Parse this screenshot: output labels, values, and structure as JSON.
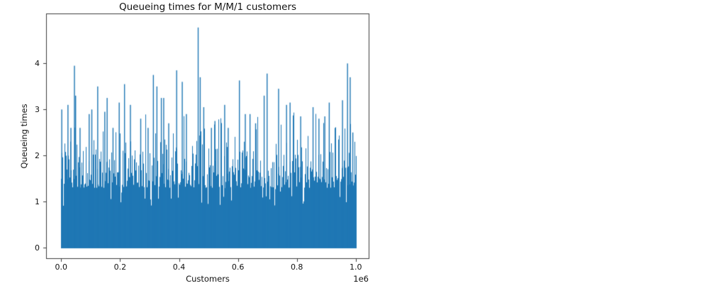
{
  "chart_data": {
    "type": "line",
    "title": "Queueing times for M/M/1 customers",
    "xlabel": "Customers",
    "ylabel": "Queueing times",
    "x_offset_text": "1e6",
    "series_color": "#1f77b4",
    "axes_color": "#3c3c3c",
    "text_color": "#111111",
    "background_color": "#ffffff",
    "legend": "none",
    "grid": false,
    "x_range": [
      0,
      1000000
    ],
    "xlim": [
      -50000,
      1050000
    ],
    "ylim": [
      -0.24,
      5.08
    ],
    "max_value": 4.78,
    "xtick_values": [
      0,
      200000,
      400000,
      600000,
      800000,
      1000000
    ],
    "xtick_labels": [
      "0.0",
      "0.2",
      "0.4",
      "0.6",
      "0.8",
      "1.0"
    ],
    "ytick_values": [
      0,
      1,
      2,
      3,
      4
    ],
    "ytick_labels": [
      "0",
      "1",
      "2",
      "3",
      "4"
    ],
    "description": "Approximately one million simulated M/M/1 queueing times plotted as a dense line; renders as a solid band from 0 with a ragged top around 1.3-2.4 plus sparse taller spikes.",
    "dense_band": {
      "bottom": 0,
      "top_typical_range": [
        1.3,
        2.35
      ],
      "texture_probability": 0.3,
      "texture_boost": 0.35,
      "tall_probability": 0.05,
      "occasional_top_range": [
        2.2,
        2.95
      ],
      "dip_probability": 0.06,
      "dip_top_range": [
        0.9,
        1.45
      ]
    },
    "peaks": [
      {
        "x": 2000,
        "y": 3.0
      },
      {
        "x": 23000,
        "y": 3.1
      },
      {
        "x": 33000,
        "y": 2.6
      },
      {
        "x": 45000,
        "y": 3.95
      },
      {
        "x": 49000,
        "y": 3.3
      },
      {
        "x": 64000,
        "y": 2.6
      },
      {
        "x": 95000,
        "y": 2.9
      },
      {
        "x": 104000,
        "y": 3.0
      },
      {
        "x": 124000,
        "y": 3.5
      },
      {
        "x": 148000,
        "y": 2.95
      },
      {
        "x": 156000,
        "y": 3.25
      },
      {
        "x": 176000,
        "y": 2.6
      },
      {
        "x": 197000,
        "y": 3.15
      },
      {
        "x": 215000,
        "y": 3.55
      },
      {
        "x": 235000,
        "y": 3.1
      },
      {
        "x": 270000,
        "y": 2.8
      },
      {
        "x": 295000,
        "y": 2.6
      },
      {
        "x": 313000,
        "y": 3.75
      },
      {
        "x": 325000,
        "y": 3.5
      },
      {
        "x": 340000,
        "y": 3.25
      },
      {
        "x": 348000,
        "y": 3.25
      },
      {
        "x": 365000,
        "y": 2.7
      },
      {
        "x": 392000,
        "y": 3.85
      },
      {
        "x": 411000,
        "y": 3.6
      },
      {
        "x": 425000,
        "y": 2.9
      },
      {
        "x": 465000,
        "y": 4.78
      },
      {
        "x": 472000,
        "y": 3.7
      },
      {
        "x": 484000,
        "y": 3.05
      },
      {
        "x": 510000,
        "y": 2.6
      },
      {
        "x": 522000,
        "y": 2.75
      },
      {
        "x": 555000,
        "y": 3.1
      },
      {
        "x": 567000,
        "y": 2.6
      },
      {
        "x": 605000,
        "y": 3.63
      },
      {
        "x": 625000,
        "y": 2.9
      },
      {
        "x": 641000,
        "y": 2.9
      },
      {
        "x": 660000,
        "y": 2.7
      },
      {
        "x": 689000,
        "y": 3.3
      },
      {
        "x": 699000,
        "y": 3.78
      },
      {
        "x": 738000,
        "y": 3.45
      },
      {
        "x": 765000,
        "y": 3.1
      },
      {
        "x": 777000,
        "y": 3.15
      },
      {
        "x": 813000,
        "y": 2.85
      },
      {
        "x": 855000,
        "y": 3.05
      },
      {
        "x": 875000,
        "y": 2.8
      },
      {
        "x": 895000,
        "y": 2.85
      },
      {
        "x": 910000,
        "y": 3.15
      },
      {
        "x": 930000,
        "y": 2.6
      },
      {
        "x": 955000,
        "y": 3.2
      },
      {
        "x": 972000,
        "y": 4.0
      },
      {
        "x": 981000,
        "y": 3.7
      },
      {
        "x": 990000,
        "y": 2.5
      }
    ]
  }
}
